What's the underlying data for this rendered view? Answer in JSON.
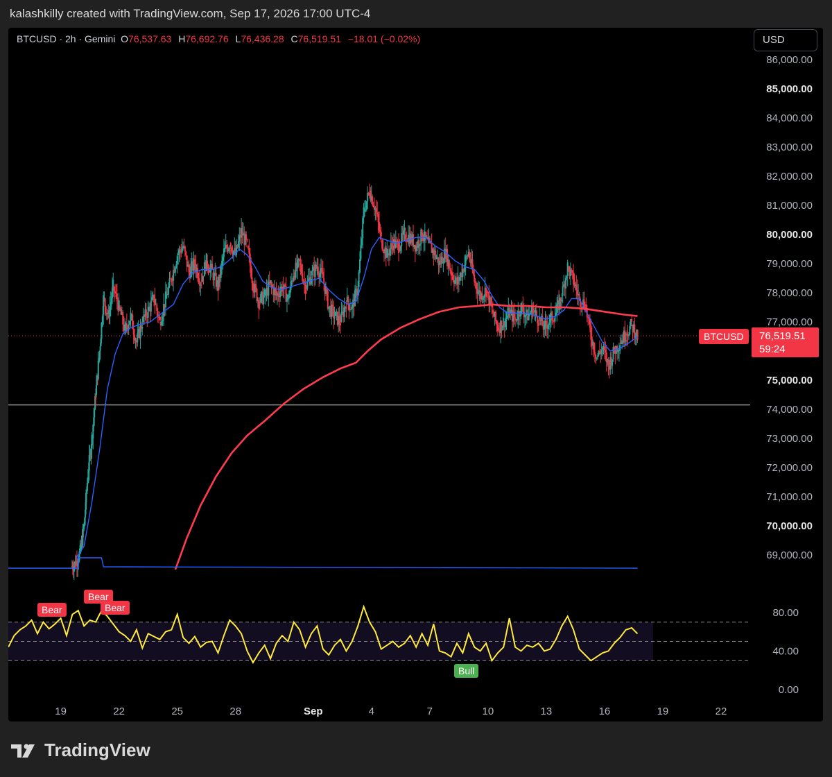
{
  "caption": "kalashkilly created with TradingView.com, Sep 17, 2026 17:00 UTC-4",
  "legend": {
    "symbol_line": "BTCUSD · 2h · Gemini",
    "open_label": "O",
    "open": "76,537.63",
    "high_label": "H",
    "high": "76,692.76",
    "low_label": "L",
    "low": "76,436.28",
    "close_label": "C",
    "close": "76,519.51",
    "change": "−18.01 (−0.02%)"
  },
  "currency": "USD",
  "price_tag": {
    "symbol": "BTCUSD",
    "price": "76,519.51",
    "countdown": "59:24"
  },
  "rsi_flags": [
    {
      "text": "Bear",
      "kind": "bear"
    },
    {
      "text": "Bear",
      "kind": "bear"
    },
    {
      "text": "Bear",
      "kind": "bear"
    },
    {
      "text": "Bull",
      "kind": "bull"
    }
  ],
  "brand": "TradingView",
  "colors": {
    "up": "#26a69a",
    "down": "#f23645",
    "ma_fast": "#2962ff",
    "ma_slow": "#ff3b4e",
    "rsi": "#ffeb3b",
    "volume_line": "#2962ff"
  },
  "chart_data": {
    "type": "candlestick",
    "symbol": "BTCUSD",
    "interval": "2h",
    "exchange": "Gemini",
    "last_price": 76519.51,
    "horizontal_line": 74150,
    "y_ticks": [
      "86,000.00",
      "85,000.00",
      "84,000.00",
      "83,000.00",
      "82,000.00",
      "81,000.00",
      "80,000.00",
      "79,000.00",
      "78,000.00",
      "77,000.00",
      "75,000.00",
      "74,000.00",
      "73,000.00",
      "72,000.00",
      "71,000.00",
      "70,000.00",
      "69,000.00"
    ],
    "y_tick_values": [
      86000,
      85000,
      84000,
      83000,
      82000,
      81000,
      80000,
      79000,
      78000,
      77000,
      75000,
      74000,
      73000,
      72000,
      71000,
      70000,
      69000
    ],
    "y_tick_bold": [
      false,
      true,
      false,
      false,
      false,
      false,
      true,
      false,
      false,
      false,
      true,
      false,
      false,
      false,
      false,
      true,
      false
    ],
    "x_ticks": [
      "19",
      "22",
      "25",
      "28",
      "Sep",
      "4",
      "7",
      "10",
      "13",
      "16",
      "19",
      "22"
    ],
    "x_tick_days": [
      19,
      22,
      25,
      28,
      32,
      35,
      38,
      41,
      44,
      47,
      50,
      53
    ],
    "x_range_days": [
      16.3,
      54.5
    ],
    "ylim": [
      68500,
      86500
    ],
    "price_path": [
      [
        19.55,
        68600
      ],
      [
        19.75,
        68700
      ],
      [
        20.0,
        69100
      ],
      [
        20.2,
        70000
      ],
      [
        20.4,
        71800
      ],
      [
        20.6,
        73000
      ],
      [
        20.8,
        74500
      ],
      [
        21.0,
        76000
      ],
      [
        21.2,
        77800
      ],
      [
        21.45,
        77200
      ],
      [
        21.7,
        78200
      ],
      [
        22.0,
        77500
      ],
      [
        22.3,
        76700
      ],
      [
        22.6,
        77200
      ],
      [
        22.9,
        76300
      ],
      [
        23.2,
        77000
      ],
      [
        23.5,
        77400
      ],
      [
        23.8,
        77800
      ],
      [
        24.1,
        77000
      ],
      [
        24.4,
        77800
      ],
      [
        24.7,
        78500
      ],
      [
        25.0,
        79300
      ],
      [
        25.3,
        79600
      ],
      [
        25.6,
        78700
      ],
      [
        25.9,
        79000
      ],
      [
        26.2,
        78400
      ],
      [
        26.5,
        79100
      ],
      [
        26.8,
        78700
      ],
      [
        27.1,
        78200
      ],
      [
        27.4,
        79400
      ],
      [
        27.7,
        79700
      ],
      [
        28.0,
        79300
      ],
      [
        28.3,
        80100
      ],
      [
        28.6,
        79600
      ],
      [
        28.9,
        78300
      ],
      [
        29.2,
        77700
      ],
      [
        29.5,
        77900
      ],
      [
        29.8,
        78300
      ],
      [
        30.1,
        77900
      ],
      [
        30.4,
        78200
      ],
      [
        30.7,
        77800
      ],
      [
        31.0,
        78700
      ],
      [
        31.3,
        79000
      ],
      [
        31.6,
        78200
      ],
      [
        31.9,
        78600
      ],
      [
        32.2,
        78900
      ],
      [
        32.5,
        78500
      ],
      [
        32.8,
        77500
      ],
      [
        33.1,
        77200
      ],
      [
        33.4,
        77000
      ],
      [
        33.7,
        77700
      ],
      [
        34.0,
        77500
      ],
      [
        34.3,
        78200
      ],
      [
        34.6,
        80800
      ],
      [
        34.9,
        81500
      ],
      [
        35.2,
        80900
      ],
      [
        35.5,
        79800
      ],
      [
        35.8,
        79300
      ],
      [
        36.1,
        79700
      ],
      [
        36.4,
        79600
      ],
      [
        36.7,
        80000
      ],
      [
        37.0,
        79900
      ],
      [
        37.3,
        79600
      ],
      [
        37.6,
        80000
      ],
      [
        37.9,
        79700
      ],
      [
        38.2,
        79400
      ],
      [
        38.5,
        79000
      ],
      [
        38.8,
        79400
      ],
      [
        39.1,
        78700
      ],
      [
        39.4,
        78300
      ],
      [
        39.7,
        78800
      ],
      [
        40.0,
        79400
      ],
      [
        40.3,
        78400
      ],
      [
        40.6,
        77900
      ],
      [
        40.9,
        78100
      ],
      [
        41.2,
        77400
      ],
      [
        41.5,
        76800
      ],
      [
        41.8,
        77000
      ],
      [
        42.1,
        77300
      ],
      [
        42.4,
        77100
      ],
      [
        42.7,
        77500
      ],
      [
        43.0,
        77200
      ],
      [
        43.3,
        77400
      ],
      [
        43.6,
        77100
      ],
      [
        43.9,
        76800
      ],
      [
        44.2,
        77100
      ],
      [
        44.5,
        77300
      ],
      [
        44.8,
        77900
      ],
      [
        45.1,
        78900
      ],
      [
        45.4,
        78400
      ],
      [
        45.7,
        77800
      ],
      [
        46.0,
        77600
      ],
      [
        46.3,
        76500
      ],
      [
        46.6,
        75800
      ],
      [
        46.9,
        76100
      ],
      [
        47.2,
        75500
      ],
      [
        47.5,
        76000
      ],
      [
        47.8,
        76300
      ],
      [
        48.1,
        76600
      ],
      [
        48.4,
        76900
      ],
      [
        48.7,
        76500
      ]
    ],
    "series": [
      {
        "name": "",
        "color": "#2962ff",
        "points": [
          [
            19.8,
            68900
          ],
          [
            20.2,
            69300
          ],
          [
            20.6,
            70800
          ],
          [
            21.0,
            72600
          ],
          [
            21.4,
            74700
          ],
          [
            21.8,
            75900
          ],
          [
            22.2,
            76600
          ],
          [
            22.6,
            76800
          ],
          [
            23.0,
            76900
          ],
          [
            23.6,
            77000
          ],
          [
            24.2,
            77300
          ],
          [
            24.8,
            77600
          ],
          [
            25.3,
            78300
          ],
          [
            25.8,
            78700
          ],
          [
            26.3,
            78800
          ],
          [
            26.8,
            78800
          ],
          [
            27.3,
            78900
          ],
          [
            27.8,
            79200
          ],
          [
            28.2,
            79500
          ],
          [
            28.6,
            79300
          ],
          [
            29.0,
            78900
          ],
          [
            29.4,
            78400
          ],
          [
            29.8,
            78200
          ],
          [
            30.3,
            78100
          ],
          [
            30.8,
            78200
          ],
          [
            31.3,
            78300
          ],
          [
            31.8,
            78400
          ],
          [
            32.3,
            78500
          ],
          [
            32.8,
            78100
          ],
          [
            33.3,
            77800
          ],
          [
            33.8,
            77600
          ],
          [
            34.2,
            77700
          ],
          [
            34.6,
            78500
          ],
          [
            35.0,
            79500
          ],
          [
            35.4,
            79900
          ],
          [
            35.8,
            79800
          ],
          [
            36.3,
            79700
          ],
          [
            36.8,
            79800
          ],
          [
            37.3,
            79900
          ],
          [
            37.8,
            79900
          ],
          [
            38.3,
            79600
          ],
          [
            38.8,
            79400
          ],
          [
            39.3,
            79100
          ],
          [
            39.8,
            78900
          ],
          [
            40.3,
            78800
          ],
          [
            40.8,
            78400
          ],
          [
            41.2,
            77900
          ],
          [
            41.6,
            77500
          ],
          [
            42.0,
            77300
          ],
          [
            42.5,
            77300
          ],
          [
            43.0,
            77300
          ],
          [
            43.5,
            77200
          ],
          [
            44.0,
            77100
          ],
          [
            44.5,
            77200
          ],
          [
            44.9,
            77400
          ],
          [
            45.3,
            77800
          ],
          [
            45.7,
            77800
          ],
          [
            46.1,
            77300
          ],
          [
            46.5,
            76800
          ],
          [
            46.9,
            76300
          ],
          [
            47.3,
            76000
          ],
          [
            47.8,
            76100
          ],
          [
            48.3,
            76300
          ],
          [
            48.7,
            76500
          ]
        ]
      },
      {
        "name": "",
        "color": "#ff3b4e",
        "points": [
          [
            24.9,
            68500
          ],
          [
            25.5,
            69600
          ],
          [
            26.2,
            70700
          ],
          [
            27.0,
            71700
          ],
          [
            27.8,
            72500
          ],
          [
            28.6,
            73100
          ],
          [
            29.5,
            73600
          ],
          [
            30.5,
            74200
          ],
          [
            31.5,
            74700
          ],
          [
            32.5,
            75100
          ],
          [
            33.4,
            75400
          ],
          [
            34.2,
            75600
          ],
          [
            34.8,
            76000
          ],
          [
            35.5,
            76400
          ],
          [
            36.5,
            76800
          ],
          [
            37.5,
            77100
          ],
          [
            38.5,
            77350
          ],
          [
            39.5,
            77500
          ],
          [
            40.5,
            77550
          ],
          [
            41.2,
            77600
          ],
          [
            42.0,
            77550
          ],
          [
            43.0,
            77550
          ],
          [
            44.0,
            77500
          ],
          [
            45.0,
            77500
          ],
          [
            46.0,
            77450
          ],
          [
            47.0,
            77350
          ],
          [
            48.0,
            77250
          ],
          [
            48.7,
            77200
          ]
        ]
      }
    ],
    "rsi": {
      "ticks": [
        "80.00",
        "40.00",
        "0.00"
      ],
      "tick_values": [
        80,
        40,
        0
      ],
      "upper_band": 70,
      "middle_band": 50,
      "lower_band": 30,
      "values": [
        [
          16.3,
          44
        ],
        [
          16.6,
          56
        ],
        [
          16.9,
          62
        ],
        [
          17.2,
          66
        ],
        [
          17.5,
          72
        ],
        [
          17.8,
          58
        ],
        [
          18.1,
          70
        ],
        [
          18.4,
          63
        ],
        [
          18.7,
          68
        ],
        [
          19.0,
          74
        ],
        [
          19.3,
          56
        ],
        [
          19.6,
          78
        ],
        [
          19.9,
          82
        ],
        [
          20.2,
          66
        ],
        [
          20.5,
          72
        ],
        [
          20.8,
          70
        ],
        [
          21.1,
          82
        ],
        [
          21.4,
          76
        ],
        [
          21.7,
          68
        ],
        [
          22.0,
          60
        ],
        [
          22.3,
          56
        ],
        [
          22.6,
          50
        ],
        [
          22.9,
          62
        ],
        [
          23.2,
          43
        ],
        [
          23.5,
          58
        ],
        [
          23.8,
          55
        ],
        [
          24.1,
          52
        ],
        [
          24.4,
          60
        ],
        [
          24.7,
          62
        ],
        [
          25.0,
          78
        ],
        [
          25.3,
          54
        ],
        [
          25.6,
          48
        ],
        [
          25.9,
          55
        ],
        [
          26.2,
          44
        ],
        [
          26.5,
          49
        ],
        [
          26.8,
          50
        ],
        [
          27.1,
          38
        ],
        [
          27.4,
          56
        ],
        [
          27.7,
          72
        ],
        [
          28.0,
          66
        ],
        [
          28.3,
          58
        ],
        [
          28.6,
          40
        ],
        [
          28.9,
          28
        ],
        [
          29.2,
          38
        ],
        [
          29.5,
          46
        ],
        [
          29.8,
          32
        ],
        [
          30.1,
          48
        ],
        [
          30.4,
          56
        ],
        [
          30.7,
          50
        ],
        [
          31.0,
          70
        ],
        [
          31.3,
          62
        ],
        [
          31.6,
          44
        ],
        [
          31.9,
          58
        ],
        [
          32.2,
          66
        ],
        [
          32.5,
          42
        ],
        [
          32.8,
          36
        ],
        [
          33.1,
          46
        ],
        [
          33.4,
          52
        ],
        [
          33.7,
          40
        ],
        [
          34.0,
          50
        ],
        [
          34.3,
          66
        ],
        [
          34.6,
          86
        ],
        [
          34.9,
          70
        ],
        [
          35.2,
          60
        ],
        [
          35.5,
          42
        ],
        [
          35.8,
          46
        ],
        [
          36.1,
          50
        ],
        [
          36.4,
          44
        ],
        [
          36.7,
          48
        ],
        [
          37.0,
          56
        ],
        [
          37.3,
          44
        ],
        [
          37.6,
          58
        ],
        [
          37.9,
          46
        ],
        [
          38.2,
          68
        ],
        [
          38.5,
          40
        ],
        [
          38.8,
          38
        ],
        [
          39.1,
          34
        ],
        [
          39.4,
          48
        ],
        [
          39.7,
          38
        ],
        [
          40.0,
          58
        ],
        [
          40.3,
          44
        ],
        [
          40.6,
          40
        ],
        [
          40.9,
          48
        ],
        [
          41.2,
          30
        ],
        [
          41.5,
          38
        ],
        [
          41.8,
          44
        ],
        [
          42.1,
          74
        ],
        [
          42.4,
          44
        ],
        [
          42.7,
          40
        ],
        [
          43.0,
          46
        ],
        [
          43.3,
          44
        ],
        [
          43.6,
          48
        ],
        [
          43.9,
          40
        ],
        [
          44.2,
          42
        ],
        [
          44.5,
          52
        ],
        [
          44.8,
          66
        ],
        [
          45.1,
          76
        ],
        [
          45.4,
          62
        ],
        [
          45.7,
          42
        ],
        [
          46.0,
          36
        ],
        [
          46.3,
          30
        ],
        [
          46.6,
          34
        ],
        [
          46.9,
          38
        ],
        [
          47.2,
          40
        ],
        [
          47.5,
          48
        ],
        [
          47.8,
          54
        ],
        [
          48.1,
          62
        ],
        [
          48.4,
          64
        ],
        [
          48.7,
          58
        ]
      ]
    }
  }
}
